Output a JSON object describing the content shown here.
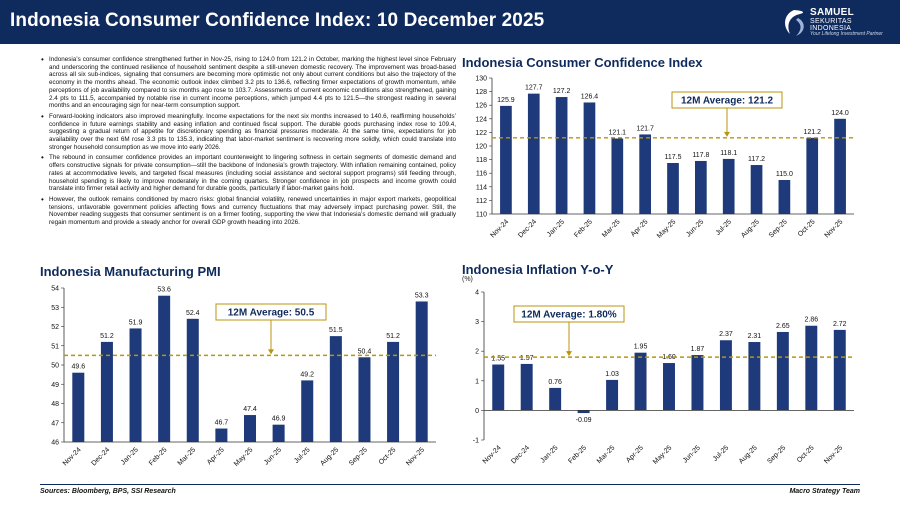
{
  "header": {
    "title": "Indonesia Consumer Confidence Index: 10 December 2025",
    "logo": {
      "line1": "SAMUEL",
      "line2": "SEKURITAS",
      "line3": "INDONESIA",
      "tagline": "Your Lifelong Investment Partner"
    }
  },
  "bullets": [
    "Indonesia’s consumer confidence strengthened further in Nov-25, rising to 124.0 from 121.2 in October, marking the highest level since February and underscoring the continued resilience of household sentiment despite a still-uneven domestic recovery. The improvement was broad-based across all six sub-indices, signaling that consumers are becoming more optimistic not only about current conditions but also the trajectory of the economy in the months ahead. The economic outlook index climbed 3.2 pts to 136.6, reflecting firmer expectations of growth momentum, while perceptions of job availability compared to six months ago rose to 103.7. Assessments of current economic conditions also strengthened, gaining 2.4 pts to 111.5, accompanied by notable rise in current income perceptions, which jumped 4.4 pts to 121.5—the strongest reading in several months and an encouraging sign for near-term consumption support.",
    "Forward-looking indicators also improved meaningfully. Income expectations for the next six months increased to 140.6, reaffirming households’ confidence in future earnings stability and easing inflation and continued fiscal support. The durable goods purchasing index rose to 109.4, suggesting a gradual return of appetite for discretionary spending as financial pressures moderate. At the same time, expectations for job availability over the next 6M rose 3.3 pts to 135.3, indicating that labor-market sentiment is recovering more solidly, which could translate into stronger household consumption as we move into early 2026.",
    "The rebound in consumer confidence provides an important counterweight to lingering softness in certain segments of domestic demand and offers constructive signals for private consumption—still the backbone of Indonesia’s growth trajectory. With inflation remaining contained, policy rates at accommodative levels, and targeted fiscal measures (including social assistance and sectoral support programs) still feeding through, household spending is likely to improve moderately in the coming quarters. Stronger confidence in job prospects and income growth could translate into firmer retail activity and higher demand for durable goods, particularly if labor-market gains hold.",
    "However, the outlook remains conditioned by macro risks: global financial volatility, renewed uncertainties in major export markets, geopolitical tensions, unfavorable government policies affecting flows and currency fluctuations that may adversely impact purchasing power. Still, the November reading suggests that consumer sentiment is on a firmer footing, supporting the view that Indonesia’s domestic demand will gradually regain momentum and provide a steady anchor for overall GDP growth heading into 2026."
  ],
  "footer": {
    "sources": "Sources: Bloomberg, BPS, SSI Research",
    "team": "Macro Strategy Team"
  },
  "colors": {
    "header_bg": "#0f2a5c",
    "bar": "#1e3a7a",
    "avg_line": "#b8960c",
    "avg_box_border": "#b8960c"
  },
  "chart_data": [
    {
      "id": "cci",
      "type": "bar",
      "title": "Indonesia Consumer Confidence Index",
      "categories": [
        "Nov-24",
        "Dec-24",
        "Jan-25",
        "Feb-25",
        "Mar-25",
        "Apr-25",
        "May-25",
        "Jun-25",
        "Jul-25",
        "Aug-25",
        "Sep-25",
        "Oct-25",
        "Nov-25"
      ],
      "values": [
        125.9,
        127.7,
        127.2,
        126.4,
        121.1,
        121.7,
        117.5,
        117.8,
        118.1,
        117.2,
        115.0,
        121.2,
        124.0
      ],
      "value_labels": [
        "125.9",
        "127.7",
        "127.2",
        "126.4",
        "121.1",
        "121.7",
        "117.5",
        "117.8",
        "118.1",
        "117.2",
        "115.0",
        "121.2",
        "124.0"
      ],
      "ylim": [
        110,
        130
      ],
      "yticks": [
        "110",
        "112",
        "114",
        "116",
        "118",
        "120",
        "122",
        "124",
        "126",
        "128",
        "130"
      ],
      "unit": "",
      "average": 121.2,
      "average_label": "12M Average: 121.2",
      "grid": false
    },
    {
      "id": "pmi",
      "type": "bar",
      "title": "Indonesia Manufacturing PMI",
      "categories": [
        "Nov-24",
        "Dec-24",
        "Jan-25",
        "Feb-25",
        "Mar-25",
        "Apr-25",
        "May-25",
        "Jun-25",
        "Jul-25",
        "Aug-25",
        "Sep-25",
        "Oct-25",
        "Nov-25"
      ],
      "values": [
        49.6,
        51.2,
        51.9,
        53.6,
        52.4,
        46.7,
        47.4,
        46.9,
        49.2,
        51.5,
        50.4,
        51.2,
        53.3
      ],
      "value_labels": [
        "49.6",
        "51.2",
        "51.9",
        "53.6",
        "52.4",
        "46.7",
        "47.4",
        "46.9",
        "49.2",
        "51.5",
        "50.4",
        "51.2",
        "53.3"
      ],
      "ylim": [
        46,
        54
      ],
      "yticks": [
        "46",
        "47",
        "48",
        "49",
        "50",
        "51",
        "52",
        "53",
        "54"
      ],
      "unit": "",
      "average": 50.5,
      "average_label": "12M Average: 50.5",
      "grid": false
    },
    {
      "id": "inflation",
      "type": "bar",
      "title": "Indonesia Inflation Y-o-Y",
      "categories": [
        "Nov-24",
        "Dec-24",
        "Jan-25",
        "Feb-25",
        "Mar-25",
        "Apr-25",
        "May-25",
        "Jun-25",
        "Jul-25",
        "Aug-25",
        "Sep-25",
        "Oct-25",
        "Nov-25"
      ],
      "values": [
        1.55,
        1.57,
        0.76,
        -0.09,
        1.03,
        1.95,
        1.6,
        1.87,
        2.37,
        2.31,
        2.65,
        2.86,
        2.72
      ],
      "value_labels": [
        "1.55",
        "1.57",
        "0.76",
        "-0.09",
        "1.03",
        "1.95",
        "1.60",
        "1.87",
        "2.37",
        "2.31",
        "2.65",
        "2.86",
        "2.72"
      ],
      "ylim": [
        -1,
        4
      ],
      "yticks": [
        "-1",
        "0",
        "1",
        "2",
        "3",
        "4"
      ],
      "unit": "(%)",
      "average": 1.8,
      "average_label": "12M Average: 1.80%",
      "grid": false
    }
  ]
}
